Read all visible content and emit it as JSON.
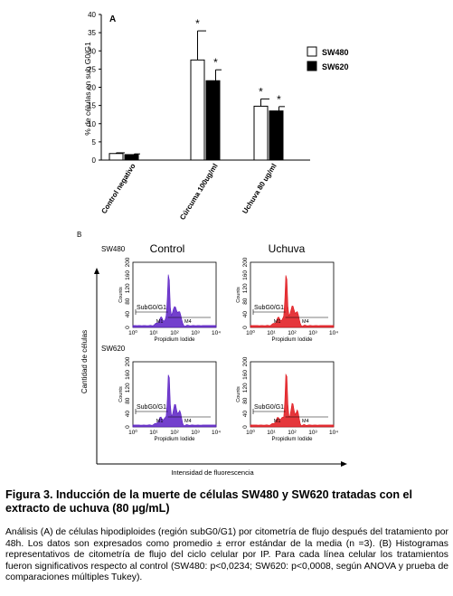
{
  "chart_data": [
    {
      "type": "bar",
      "panel_label": "A",
      "ylabel": "% de células en sub G0/G1",
      "ylim": [
        0,
        40
      ],
      "yticks": [
        0,
        5,
        10,
        15,
        20,
        25,
        30,
        35,
        40
      ],
      "categories": [
        "Control negativo",
        "Cúrcuma 100ug/ml",
        "Uchuva 80 ug/ml"
      ],
      "series": [
        {
          "name": "SW480",
          "color": "#ffffff",
          "values": [
            1.8,
            27.5,
            14.8
          ],
          "errors": [
            0.2,
            8.0,
            2.0
          ],
          "significant": [
            false,
            true,
            true
          ]
        },
        {
          "name": "SW620",
          "color": "#000000",
          "values": [
            1.5,
            21.8,
            13.5
          ],
          "errors": [
            0.2,
            3.0,
            1.2
          ],
          "significant": [
            false,
            true,
            true
          ]
        }
      ],
      "significance_marker": "*",
      "legend_position": "top-right"
    },
    {
      "type": "histogram",
      "panel_label": "B",
      "columns": [
        "Control",
        "Uchuva"
      ],
      "rows": [
        "SW480",
        "SW620"
      ],
      "y_axis_label": "Cantidad de células",
      "x_axis_label": "Intensidad de fluorescencia",
      "subplot": {
        "ylabel": "Counts",
        "xlabel": "Propidium Iodide",
        "yticks": [
          "0",
          "40",
          "80",
          "120",
          "160",
          "200"
        ],
        "xticks": [
          "10⁰",
          "10¹",
          "10²",
          "10³",
          "10⁴"
        ],
        "gate_label": "SubG0/G1",
        "marker_label": "M4",
        "marker_left": "M1"
      },
      "colors": {
        "control": "#5a1fc4",
        "uchuva": "#e0141a"
      }
    }
  ],
  "caption": {
    "figure_label": "Figura 3",
    "title": ". Inducción de la muerte de células SW480 y SW620 tratadas con el extracto de uchuva (80 µg/mL)",
    "body": "Análisis (A) de células hipodiploides (región subG0/G1) por citometría de flujo después del tratamiento por 48h. Los datos son expresados como promedio ± error estándar de la media (n =3). (B) Histogramas representativos de citometría de flujo del ciclo celular por IP. Para cada línea celular los tratamientos fueron significativos respecto al control (SW480: p<0,0234; SW620: p<0,0008, según ANOVA y prueba de comparaciones múltiples Tukey)."
  }
}
